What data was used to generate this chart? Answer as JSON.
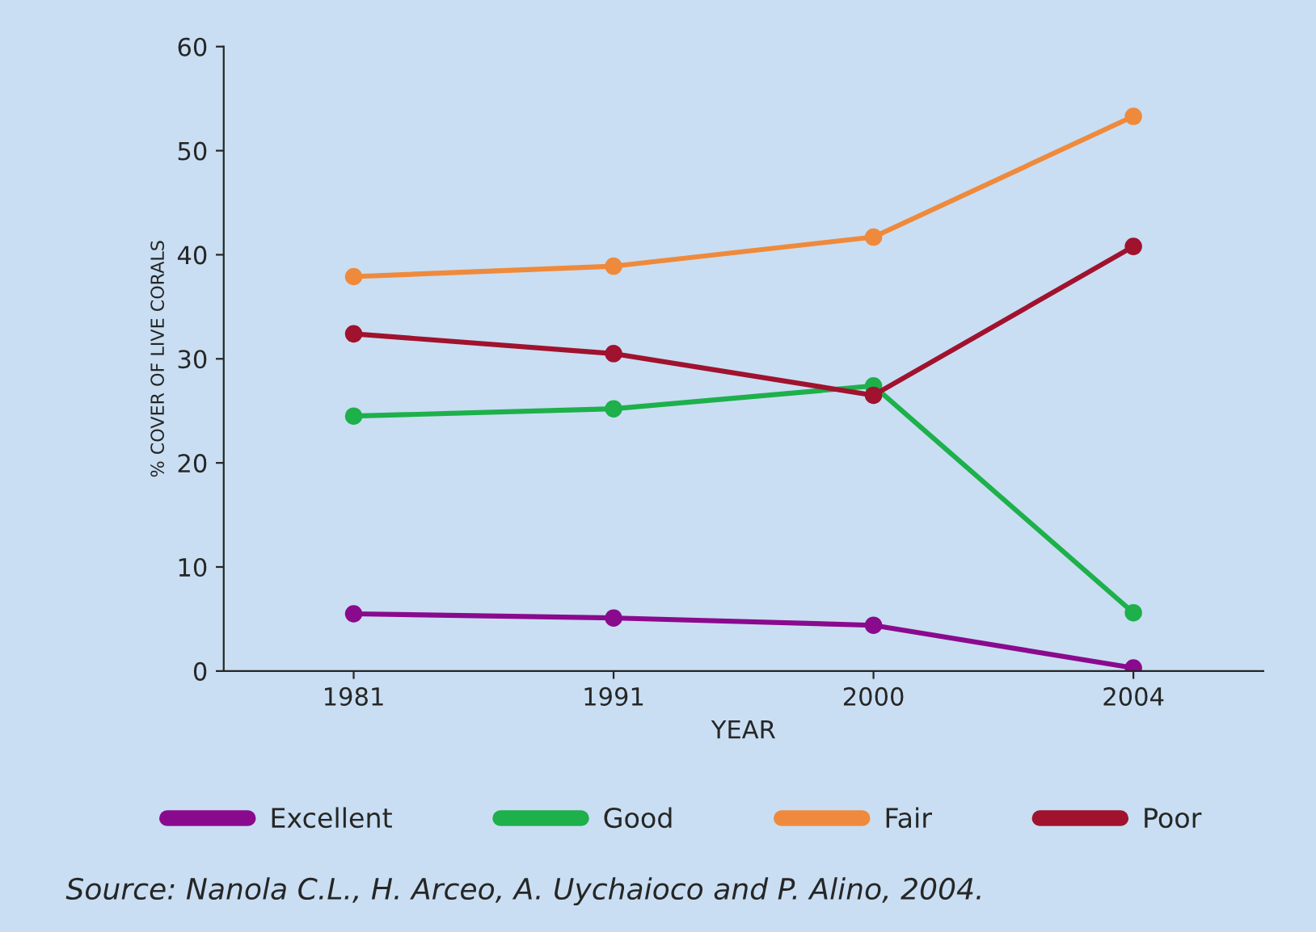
{
  "chart_data": {
    "type": "line",
    "xlabel": "YEAR",
    "ylabel": "% COVER OF LIVE CORALS",
    "categories": [
      "1981",
      "1991",
      "2000",
      "2004"
    ],
    "series": [
      {
        "name": "Excellent",
        "color": "#8a0a8e",
        "values": [
          5.5,
          5.1,
          4.4,
          0.3
        ]
      },
      {
        "name": "Good",
        "color": "#1db04b",
        "values": [
          24.5,
          25.2,
          27.4,
          5.6
        ]
      },
      {
        "name": "Fair",
        "color": "#ef8a3c",
        "values": [
          37.9,
          38.9,
          41.7,
          53.3
        ]
      },
      {
        "name": "Poor",
        "color": "#a0122e",
        "values": [
          32.4,
          30.5,
          26.5,
          40.8
        ]
      }
    ],
    "ylim": [
      0,
      60
    ],
    "yticks": [
      0,
      10,
      20,
      30,
      40,
      50,
      60
    ],
    "grid": false,
    "legend": "bottom",
    "marker": "circle",
    "line_style": "solid",
    "annotations": [
      "Source: Nanola C.L., H. Arceo, A. Uychaioco and P. Alino, 2004."
    ]
  }
}
